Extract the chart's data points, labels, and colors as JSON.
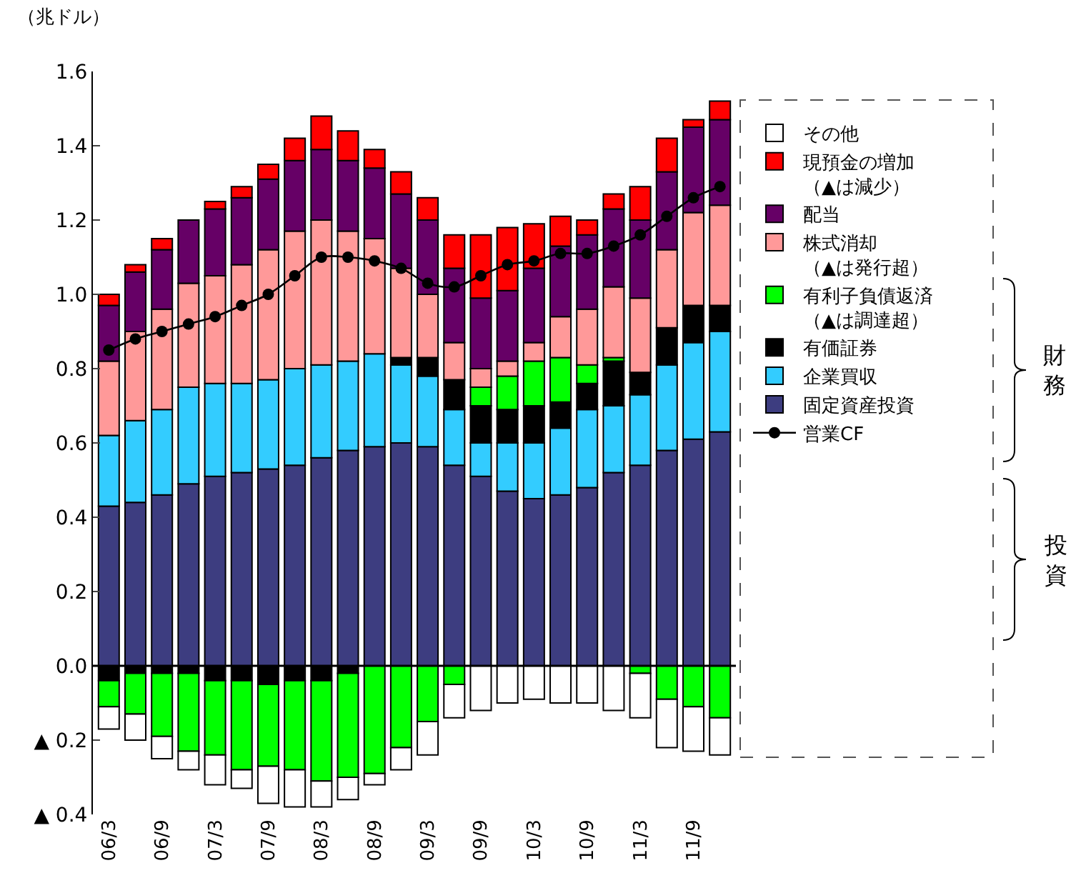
{
  "chart_data": {
    "type": "bar",
    "stacked": true,
    "ylabel": "（兆ドル）",
    "categories": [
      "06/3",
      null,
      "06/9",
      null,
      "07/3",
      null,
      "07/9",
      null,
      "08/3",
      null,
      "08/9",
      null,
      "09/3",
      null,
      "09/9",
      null,
      "10/3",
      null,
      "10/9",
      null,
      "11/3",
      null,
      "11/9",
      null
    ],
    "series": [
      {
        "name": "固定資産投資",
        "color": "#3d3d80",
        "values": [
          0.43,
          0.44,
          0.46,
          0.49,
          0.51,
          0.52,
          0.53,
          0.54,
          0.56,
          0.58,
          0.59,
          0.6,
          0.59,
          0.54,
          0.51,
          0.47,
          0.45,
          0.46,
          0.48,
          0.52,
          0.54,
          0.58,
          0.61,
          0.63
        ]
      },
      {
        "name": "企業買収",
        "color": "#33ccff",
        "values": [
          0.19,
          0.22,
          0.23,
          0.26,
          0.25,
          0.24,
          0.24,
          0.26,
          0.25,
          0.24,
          0.25,
          0.21,
          0.19,
          0.15,
          0.09,
          0.13,
          0.15,
          0.18,
          0.21,
          0.18,
          0.19,
          0.23,
          0.26,
          0.27
        ]
      },
      {
        "name": "有価証券",
        "color": "#000000",
        "values": [
          -0.04,
          -0.02,
          -0.02,
          -0.02,
          -0.04,
          -0.04,
          -0.05,
          -0.04,
          -0.04,
          -0.02,
          null,
          0.02,
          0.05,
          0.08,
          0.1,
          0.09,
          0.1,
          0.07,
          0.07,
          0.12,
          0.06,
          0.1,
          0.1,
          0.07
        ]
      },
      {
        "name": "有利子負債返済（▲は調達超）",
        "color": "#00ff00",
        "values": [
          -0.07,
          -0.11,
          -0.17,
          -0.21,
          -0.2,
          -0.24,
          -0.22,
          -0.24,
          -0.27,
          -0.28,
          -0.29,
          -0.22,
          -0.15,
          -0.05,
          0.05,
          0.09,
          0.12,
          0.12,
          0.05,
          0.01,
          -0.02,
          -0.09,
          -0.11,
          -0.14
        ]
      },
      {
        "name": "株式消却（▲は発行超）",
        "color": "#ff9999",
        "values": [
          0.2,
          0.24,
          0.27,
          0.28,
          0.29,
          0.32,
          0.35,
          0.37,
          0.39,
          0.35,
          0.31,
          0.24,
          0.17,
          0.1,
          0.05,
          0.04,
          0.05,
          0.11,
          0.15,
          0.19,
          0.2,
          0.21,
          0.25,
          0.27
        ]
      },
      {
        "name": "配当",
        "color": "#660066",
        "values": [
          0.15,
          0.16,
          0.16,
          0.17,
          0.18,
          0.18,
          0.19,
          0.19,
          0.19,
          0.19,
          0.19,
          0.2,
          0.2,
          0.2,
          0.19,
          0.19,
          0.2,
          0.19,
          0.2,
          0.21,
          0.21,
          0.21,
          0.23,
          0.23
        ]
      },
      {
        "name": "現預金の増加（▲は減少）",
        "color": "#ff0000",
        "values": [
          0.03,
          0.02,
          0.03,
          null,
          0.02,
          0.03,
          0.04,
          0.06,
          0.09,
          0.08,
          0.05,
          0.06,
          0.06,
          0.09,
          0.17,
          0.17,
          0.12,
          0.08,
          0.04,
          0.04,
          0.09,
          0.09,
          0.02,
          0.05
        ]
      },
      {
        "name": "その他",
        "color": "#ffffff",
        "values": [
          -0.06,
          -0.07,
          -0.06,
          -0.05,
          -0.08,
          -0.05,
          -0.1,
          -0.1,
          -0.07,
          -0.06,
          -0.03,
          -0.06,
          -0.09,
          -0.09,
          -0.12,
          -0.1,
          -0.09,
          -0.1,
          -0.1,
          -0.12,
          -0.12,
          -0.13,
          -0.12,
          -0.1
        ]
      },
      {
        "name": "営業CF",
        "type": "line",
        "color": "#000000",
        "marker": "circle",
        "values": [
          0.85,
          0.88,
          0.9,
          0.92,
          0.94,
          0.97,
          1.0,
          1.05,
          1.1,
          1.1,
          1.09,
          1.07,
          1.03,
          1.02,
          1.05,
          1.08,
          1.09,
          1.11,
          1.11,
          1.13,
          1.16,
          1.21,
          1.26,
          1.29
        ]
      }
    ],
    "ylim": [
      -0.4,
      1.6
    ],
    "yticks": [
      {
        "value": -0.4,
        "label": "▲ 0.4"
      },
      {
        "value": -0.2,
        "label": "▲ 0.2"
      },
      {
        "value": 0,
        "label": "0.0"
      },
      0.2,
      0.4,
      0.6,
      0.8,
      {
        "value": 1,
        "label": "1.0"
      },
      1.2,
      1.4,
      1.6
    ],
    "annotations": [
      "財務",
      "投資"
    ],
    "ref_lines": [
      {
        "axis": "y",
        "value": 0,
        "color": "#000000"
      }
    ],
    "legend": "right"
  }
}
